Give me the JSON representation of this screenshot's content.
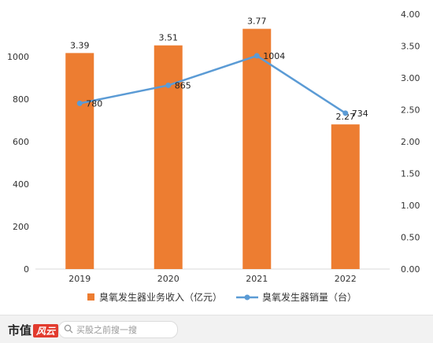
{
  "chart_data": {
    "type": "bar",
    "title": "",
    "categories": [
      "2019",
      "2020",
      "2021",
      "2022"
    ],
    "series": [
      {
        "name": "臭氧发生器业务收入（亿元）",
        "type": "bar",
        "axis": "right",
        "values": [
          3.39,
          3.51,
          3.77,
          2.27
        ],
        "labels": [
          "3.39",
          "3.51",
          "3.77",
          "2.27"
        ],
        "color": "#ed7d31"
      },
      {
        "name": "臭氧发生器销量（台）",
        "type": "line",
        "axis": "left",
        "values": [
          780,
          865,
          1004,
          734
        ],
        "labels": [
          "780",
          "865",
          "1004",
          "734"
        ],
        "color": "#5b9bd5"
      }
    ],
    "left_axis": {
      "ylim": [
        0,
        1200
      ],
      "ticks": [
        "0",
        "200",
        "400",
        "600",
        "800",
        "1000"
      ]
    },
    "right_axis": {
      "ylim": [
        0,
        4.0
      ],
      "ticks": [
        "0.00",
        "0.50",
        "1.00",
        "1.50",
        "2.00",
        "2.50",
        "3.00",
        "3.50",
        "4.00"
      ]
    },
    "legend_position": "bottom",
    "grid": false
  },
  "footer": {
    "brand": "市值",
    "brand_mark": "风云",
    "search_placeholder": "买股之前搜一搜"
  }
}
